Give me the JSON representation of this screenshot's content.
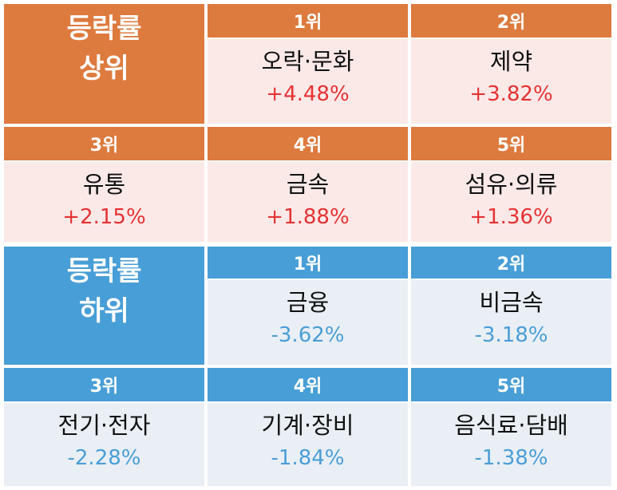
{
  "top": {
    "title_line1": "등락률",
    "title_line2": "상위",
    "ranks": [
      {
        "rank": "1위",
        "name": "오락·문화",
        "change": "+4.48%"
      },
      {
        "rank": "2위",
        "name": "제약",
        "change": "+3.82%"
      },
      {
        "rank": "3위",
        "name": "유통",
        "change": "+2.15%"
      },
      {
        "rank": "4위",
        "name": "금속",
        "change": "+1.88%"
      },
      {
        "rank": "5위",
        "name": "섬유·의류",
        "change": "+1.36%"
      }
    ]
  },
  "bottom": {
    "title_line1": "등락률",
    "title_line2": "하위",
    "ranks": [
      {
        "rank": "1위",
        "name": "금융",
        "change": "-3.62%"
      },
      {
        "rank": "2위",
        "name": "비금속",
        "change": "-3.18%"
      },
      {
        "rank": "3위",
        "name": "전기·전자",
        "change": "-2.28%"
      },
      {
        "rank": "4위",
        "name": "기계·장비",
        "change": "-1.84%"
      },
      {
        "rank": "5위",
        "name": "음식료·담배",
        "change": "-1.38%"
      }
    ]
  },
  "colors": {
    "top_header": "#dd7a3e",
    "top_body": "#fbe9e8",
    "top_value": "#e53333",
    "bottom_header": "#489ed6",
    "bottom_body": "#e9eff5",
    "bottom_value": "#4a9ed6"
  }
}
